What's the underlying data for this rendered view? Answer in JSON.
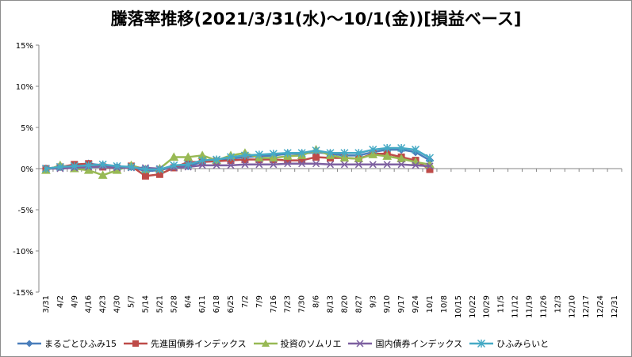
{
  "chart_data": {
    "type": "line",
    "title": "騰落率推移(2021/3/31(水)〜10/1(金))[損益ベース]",
    "xlabel": "",
    "ylabel": "",
    "ylim": [
      -15,
      15
    ],
    "y_ticks": [
      "15%",
      "10%",
      "5%",
      "0%",
      "-5%",
      "-10%",
      "-15%"
    ],
    "y_tick_values": [
      15,
      10,
      5,
      0,
      -5,
      -10,
      -15
    ],
    "x_ticks": [
      "3/31",
      "4/2",
      "4/9",
      "4/16",
      "4/23",
      "4/30",
      "5/7",
      "5/14",
      "5/21",
      "5/28",
      "6/4",
      "6/11",
      "6/18",
      "6/25",
      "7/2",
      "7/9",
      "7/16",
      "7/23",
      "7/30",
      "8/6",
      "8/13",
      "8/20",
      "8/27",
      "9/3",
      "9/10",
      "9/17",
      "9/24",
      "10/1",
      "10/8",
      "10/15",
      "10/22",
      "10/29",
      "11/5",
      "11/12",
      "11/19",
      "11/26",
      "12/3",
      "12/10",
      "12/17",
      "12/24",
      "12/31"
    ],
    "x": [
      "3/31",
      "4/2",
      "4/9",
      "4/16",
      "4/23",
      "4/30",
      "5/7",
      "5/14",
      "5/21",
      "5/28",
      "6/4",
      "6/11",
      "6/18",
      "6/25",
      "7/2",
      "7/9",
      "7/16",
      "7/23",
      "7/30",
      "8/6",
      "8/13",
      "8/20",
      "8/27",
      "9/3",
      "9/10",
      "9/17",
      "9/24",
      "10/1"
    ],
    "grid": false,
    "legend_position": "bottom",
    "series": [
      {
        "name": "まるごとひふみ15",
        "color": "#4a7ebb",
        "marker": "diamond",
        "values": [
          0.0,
          0.2,
          0.4,
          0.6,
          0.4,
          0.2,
          0.2,
          -0.3,
          -0.2,
          0.2,
          0.3,
          0.8,
          1.0,
          1.2,
          1.4,
          1.5,
          1.6,
          1.8,
          1.8,
          2.0,
          1.8,
          1.6,
          1.6,
          2.0,
          2.3,
          2.3,
          2.0,
          1.0
        ]
      },
      {
        "name": "先進国債券インデックス",
        "color": "#be4b48",
        "marker": "square",
        "values": [
          0.0,
          0.2,
          0.5,
          0.6,
          0.2,
          0.0,
          0.3,
          -0.9,
          -0.7,
          0.1,
          0.8,
          0.8,
          0.9,
          1.0,
          1.1,
          1.1,
          1.1,
          1.0,
          1.0,
          1.4,
          1.3,
          1.3,
          1.2,
          1.8,
          1.8,
          1.4,
          1.0,
          -0.1
        ]
      },
      {
        "name": "投資のソムリエ",
        "color": "#98b954",
        "marker": "triangle",
        "values": [
          -0.2,
          0.4,
          0.0,
          -0.2,
          -0.8,
          -0.2,
          0.4,
          -0.1,
          0.0,
          1.4,
          1.4,
          1.6,
          1.0,
          1.6,
          1.9,
          1.3,
          1.3,
          1.5,
          1.6,
          2.3,
          1.6,
          1.3,
          1.2,
          1.7,
          1.5,
          1.2,
          0.8,
          0.5
        ]
      },
      {
        "name": "国内債券インデックス",
        "color": "#7d60a0",
        "marker": "x",
        "values": [
          0.0,
          0.0,
          0.1,
          0.2,
          0.2,
          0.1,
          0.1,
          0.1,
          0.0,
          0.1,
          0.2,
          0.4,
          0.4,
          0.4,
          0.5,
          0.5,
          0.5,
          0.6,
          0.6,
          0.6,
          0.5,
          0.5,
          0.5,
          0.5,
          0.5,
          0.5,
          0.4,
          0.3
        ]
      },
      {
        "name": "ひふみらいと",
        "color": "#46aac5",
        "marker": "asterisk",
        "values": [
          0.0,
          0.2,
          0.3,
          0.4,
          0.5,
          0.3,
          0.2,
          -0.1,
          -0.1,
          0.4,
          0.5,
          1.0,
          1.1,
          1.4,
          1.6,
          1.7,
          1.8,
          1.9,
          1.9,
          2.2,
          1.9,
          1.9,
          1.9,
          2.3,
          2.5,
          2.5,
          2.3,
          1.3
        ]
      }
    ]
  }
}
